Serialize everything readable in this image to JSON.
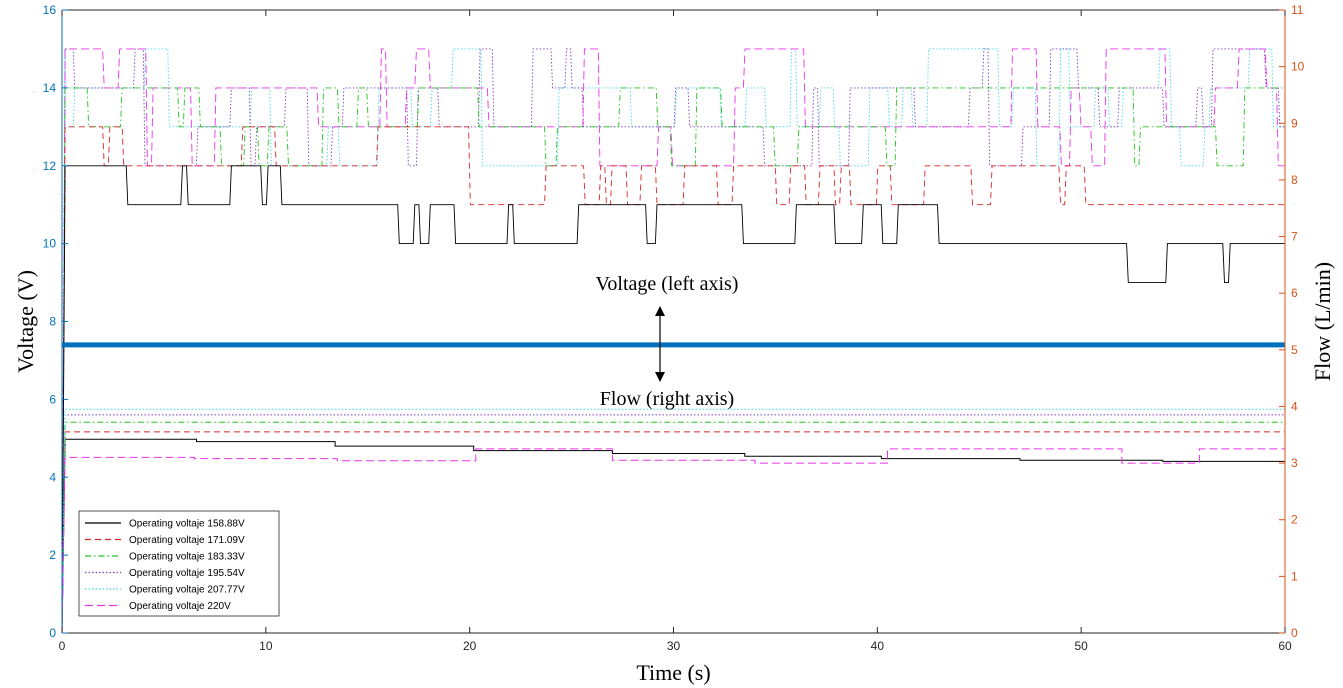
{
  "chart_data": {
    "type": "line",
    "xlabel": "Time (s)",
    "ylabel_left": "Voltage (V)",
    "ylabel_right": "Flow (L/min)",
    "xlim": [
      0,
      60
    ],
    "ylim_left": [
      0,
      16
    ],
    "ylim_right": [
      0,
      11
    ],
    "x_ticks": [
      "0",
      "10",
      "20",
      "30",
      "40",
      "50",
      "60"
    ],
    "y_left_ticks": [
      "0",
      "2",
      "4",
      "6",
      "8",
      "10",
      "12",
      "14",
      "16"
    ],
    "y_right_ticks": [
      "0",
      "1",
      "2",
      "3",
      "4",
      "5",
      "6",
      "7",
      "8",
      "9",
      "10",
      "11"
    ],
    "grid": false,
    "legend_position": "bottom-left",
    "annotations": [
      "Voltage (left axis)",
      "Flow (right axis)"
    ],
    "colors": {
      "left_axis": "#0072BD",
      "right_axis": "#D95319",
      "divider_line": "#0072BD"
    },
    "divider_line_voltage": 7.4,
    "series": [
      {
        "name": "Operating voltaje 158.88V",
        "color": "#000000",
        "dash": "",
        "voltage_levels": [
          12,
          11,
          10,
          9
        ],
        "voltage_segments": [
          [
            0,
            12,
            12,
            11
          ],
          [
            12,
            25,
            11,
            10
          ],
          [
            25,
            47,
            11,
            10
          ],
          [
            47,
            60,
            10,
            9
          ]
        ],
        "flow": [
          [
            0,
            3.42
          ],
          [
            6.6,
            3.38
          ],
          [
            13.4,
            3.3
          ],
          [
            20.2,
            3.22
          ],
          [
            27,
            3.17
          ],
          [
            33.5,
            3.12
          ],
          [
            40.2,
            3.08
          ],
          [
            47,
            3.05
          ],
          [
            54,
            3.03
          ],
          [
            60,
            3.02
          ]
        ]
      },
      {
        "name": "Operating voltaje 171.09V",
        "color": "#D62728",
        "dash": "6,4",
        "voltage_levels": [
          13,
          12,
          11
        ],
        "voltage_segments": [
          [
            0,
            20,
            13,
            12
          ],
          [
            20,
            60,
            12,
            11
          ]
        ],
        "flow": [
          [
            0,
            3.55
          ],
          [
            60,
            3.48
          ]
        ]
      },
      {
        "name": "Operating voltaje 183.33V",
        "color": "#22C41E",
        "dash": "6,3,1.5,3",
        "voltage_levels": [
          14,
          13,
          12,
          11
        ],
        "voltage_segments": [
          [
            0,
            60,
            14,
            12
          ]
        ],
        "flow": [
          [
            0,
            3.72
          ],
          [
            60,
            3.6
          ]
        ]
      },
      {
        "name": "Operating voltaje 195.54V",
        "color": "#7B3FBF",
        "dash": "1.5,2",
        "voltage_levels": [
          15,
          14,
          13,
          12
        ],
        "voltage_segments": [
          [
            0,
            60,
            15,
            12
          ]
        ],
        "flow": [
          [
            0,
            3.85
          ],
          [
            60,
            3.75
          ]
        ]
      },
      {
        "name": "Operating voltaje 207.77V",
        "color": "#3FD8E8",
        "dash": "1.5,2",
        "voltage_levels": [
          15,
          14,
          13,
          12
        ],
        "voltage_segments": [
          [
            0,
            60,
            15,
            12
          ]
        ],
        "flow": [
          [
            0,
            3.95
          ],
          [
            60,
            3.83
          ]
        ]
      },
      {
        "name": "Operating voltaje 220V",
        "color": "#E834E8",
        "dash": "8,4",
        "voltage_levels": [
          15,
          14,
          13,
          12
        ],
        "voltage_segments": [
          [
            0,
            60,
            15,
            12
          ]
        ],
        "flow": [
          [
            0,
            3.1
          ],
          [
            6.5,
            3.08
          ],
          [
            13.5,
            3.04
          ],
          [
            20.3,
            3.25
          ],
          [
            27,
            3.05
          ],
          [
            34,
            3.0
          ],
          [
            40.5,
            3.25
          ],
          [
            47.5,
            3.25
          ],
          [
            52,
            3.0
          ],
          [
            55.8,
            3.25
          ],
          [
            60,
            3.25
          ]
        ]
      }
    ]
  }
}
